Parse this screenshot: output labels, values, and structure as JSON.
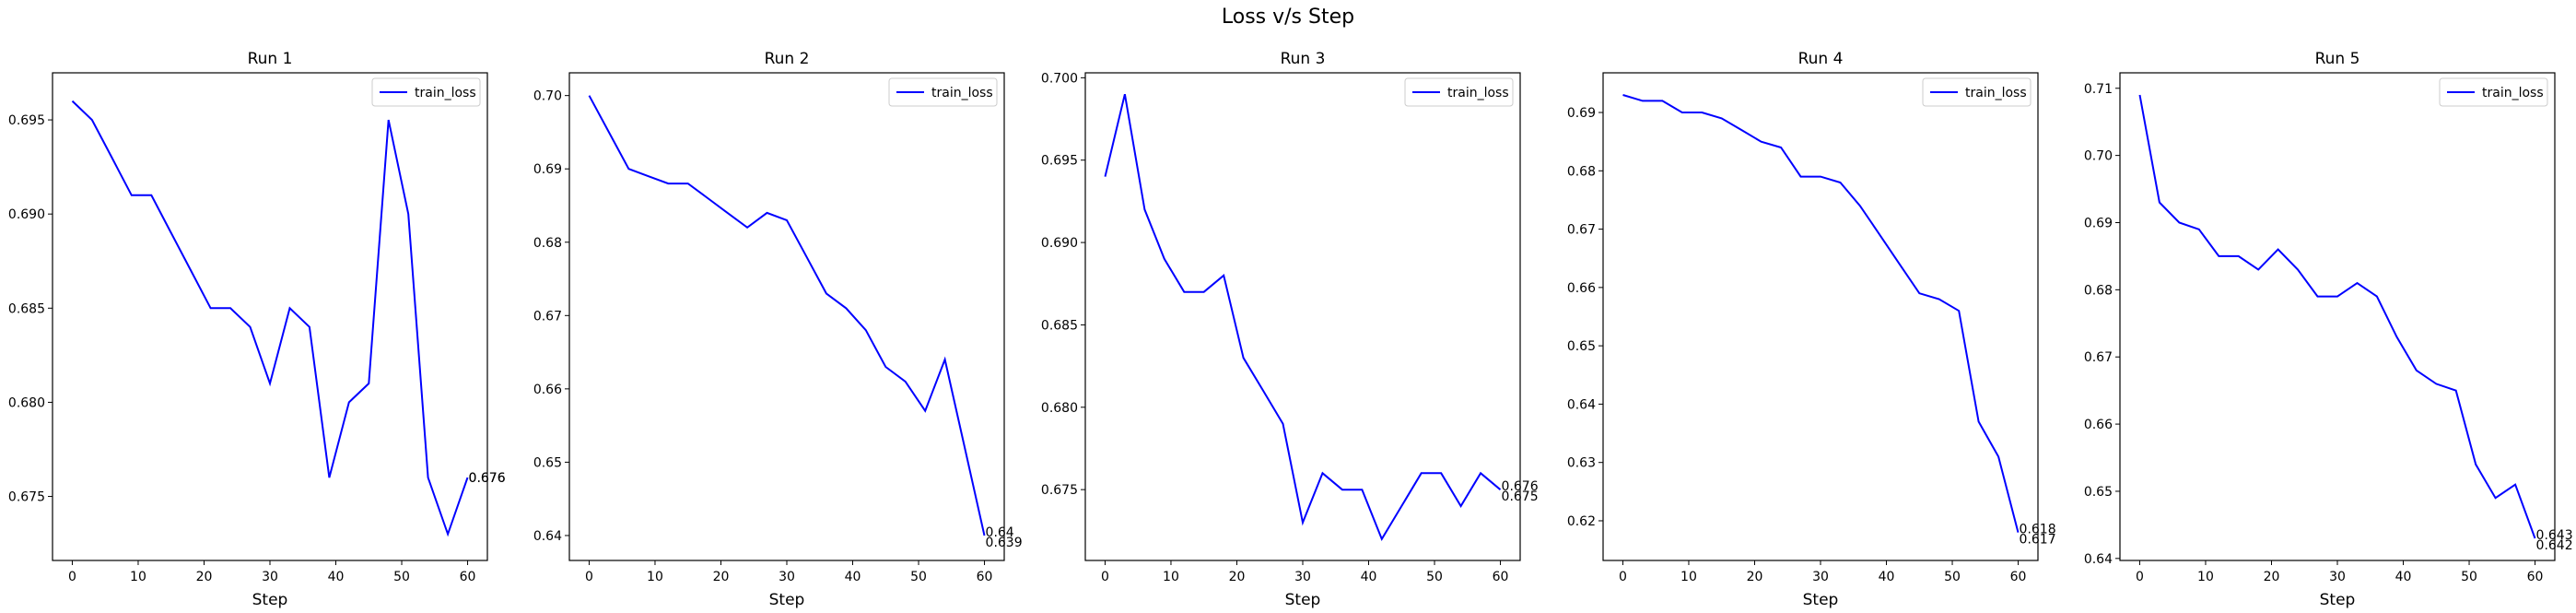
{
  "figure": {
    "title": "Loss v/s Step"
  },
  "colors": {
    "series": "#0000ff",
    "axes": "#000000",
    "background": "#ffffff"
  },
  "chart_data": [
    {
      "type": "line",
      "title": "Run 1",
      "xlabel": "Step",
      "ylabel": "",
      "xlim": [
        -3,
        63
      ],
      "ylim": [
        0.6716,
        0.6975
      ],
      "xticks": [
        0,
        10,
        20,
        30,
        40,
        50,
        60
      ],
      "yticks": [
        0.675,
        0.68,
        0.685,
        0.69,
        0.695
      ],
      "ytick_labels": [
        "0.675",
        "0.680",
        "0.685",
        "0.690",
        "0.695"
      ],
      "grid": false,
      "legend": "top-right",
      "series": [
        {
          "name": "train_loss",
          "x": [
            0,
            3,
            6,
            9,
            12,
            15,
            18,
            21,
            24,
            27,
            30,
            33,
            36,
            39,
            42,
            45,
            48,
            51,
            54,
            57,
            60
          ],
          "y": [
            0.696,
            0.695,
            0.693,
            0.691,
            0.691,
            0.689,
            0.687,
            0.685,
            0.685,
            0.684,
            0.681,
            0.685,
            0.684,
            0.676,
            0.68,
            0.681,
            0.695,
            0.69,
            0.676,
            0.673,
            0.676
          ]
        }
      ],
      "annotations": [
        "0.676",
        "0.676"
      ]
    },
    {
      "type": "line",
      "title": "Run 2",
      "xlabel": "Step",
      "ylabel": "",
      "xlim": [
        -3,
        63
      ],
      "ylim": [
        0.6366,
        0.7031
      ],
      "xticks": [
        0,
        10,
        20,
        30,
        40,
        50,
        60
      ],
      "yticks": [
        0.64,
        0.65,
        0.66,
        0.67,
        0.68,
        0.69,
        0.7
      ],
      "ytick_labels": [
        "0.64",
        "0.65",
        "0.66",
        "0.67",
        "0.68",
        "0.69",
        "0.70"
      ],
      "grid": false,
      "legend": "top-right",
      "series": [
        {
          "name": "train_loss",
          "x": [
            0,
            3,
            6,
            9,
            12,
            15,
            18,
            21,
            24,
            27,
            30,
            33,
            36,
            39,
            42,
            45,
            48,
            51,
            54,
            57,
            60
          ],
          "y": [
            0.7,
            0.695,
            0.69,
            0.689,
            0.688,
            0.688,
            0.686,
            0.684,
            0.682,
            0.684,
            0.683,
            0.678,
            0.673,
            0.671,
            0.668,
            0.663,
            0.661,
            0.657,
            0.664,
            0.652,
            0.64
          ]
        }
      ],
      "annotations": [
        "0.64",
        "0.639"
      ]
    },
    {
      "type": "line",
      "title": "Run 3",
      "xlabel": "Step",
      "ylabel": "",
      "xlim": [
        -3,
        63
      ],
      "ylim": [
        0.6707,
        0.7003
      ],
      "xticks": [
        0,
        10,
        20,
        30,
        40,
        50,
        60
      ],
      "yticks": [
        0.675,
        0.68,
        0.685,
        0.69,
        0.695,
        0.7
      ],
      "ytick_labels": [
        "0.675",
        "0.680",
        "0.685",
        "0.690",
        "0.695",
        "0.700"
      ],
      "grid": false,
      "legend": "top-right",
      "series": [
        {
          "name": "train_loss",
          "x": [
            0,
            3,
            6,
            9,
            12,
            15,
            18,
            21,
            24,
            27,
            30,
            33,
            36,
            39,
            42,
            45,
            48,
            51,
            54,
            57,
            60
          ],
          "y": [
            0.694,
            0.699,
            0.692,
            0.689,
            0.687,
            0.687,
            0.688,
            0.683,
            0.681,
            0.679,
            0.673,
            0.676,
            0.675,
            0.675,
            0.672,
            0.674,
            0.676,
            0.676,
            0.674,
            0.676,
            0.675
          ]
        }
      ],
      "annotations": [
        "0.676",
        "0.675"
      ]
    },
    {
      "type": "line",
      "title": "Run 4",
      "xlabel": "Step",
      "ylabel": "",
      "xlim": [
        -3,
        63
      ],
      "ylim": [
        0.6132,
        0.6968
      ],
      "xticks": [
        0,
        10,
        20,
        30,
        40,
        50,
        60
      ],
      "yticks": [
        0.62,
        0.63,
        0.64,
        0.65,
        0.66,
        0.67,
        0.68,
        0.69
      ],
      "ytick_labels": [
        "0.62",
        "0.63",
        "0.64",
        "0.65",
        "0.66",
        "0.67",
        "0.68",
        "0.69"
      ],
      "grid": false,
      "legend": "top-right",
      "series": [
        {
          "name": "train_loss",
          "x": [
            0,
            3,
            6,
            9,
            12,
            15,
            18,
            21,
            24,
            27,
            30,
            33,
            36,
            39,
            42,
            45,
            48,
            51,
            54,
            57,
            60
          ],
          "y": [
            0.693,
            0.692,
            0.692,
            0.69,
            0.69,
            0.689,
            0.687,
            0.685,
            0.684,
            0.679,
            0.679,
            0.678,
            0.674,
            0.669,
            0.664,
            0.659,
            0.658,
            0.656,
            0.637,
            0.631,
            0.618
          ]
        }
      ],
      "annotations": [
        "0.618",
        "0.617"
      ]
    },
    {
      "type": "line",
      "title": "Run 5",
      "xlabel": "Step",
      "ylabel": "",
      "xlim": [
        -3,
        63
      ],
      "ylim": [
        0.6397,
        0.7123
      ],
      "xticks": [
        0,
        10,
        20,
        30,
        40,
        50,
        60
      ],
      "yticks": [
        0.64,
        0.65,
        0.66,
        0.67,
        0.68,
        0.69,
        0.7,
        0.71
      ],
      "ytick_labels": [
        "0.64",
        "0.65",
        "0.66",
        "0.67",
        "0.68",
        "0.69",
        "0.70",
        "0.71"
      ],
      "grid": false,
      "legend": "top-right",
      "series": [
        {
          "name": "train_loss",
          "x": [
            0,
            3,
            6,
            9,
            12,
            15,
            18,
            21,
            24,
            27,
            30,
            33,
            36,
            39,
            42,
            45,
            48,
            51,
            54,
            57,
            60
          ],
          "y": [
            0.709,
            0.693,
            0.69,
            0.689,
            0.685,
            0.685,
            0.683,
            0.686,
            0.683,
            0.679,
            0.679,
            0.681,
            0.679,
            0.673,
            0.668,
            0.666,
            0.665,
            0.654,
            0.649,
            0.651,
            0.643
          ]
        }
      ],
      "annotations": [
        "0.643",
        "0.642"
      ]
    }
  ]
}
